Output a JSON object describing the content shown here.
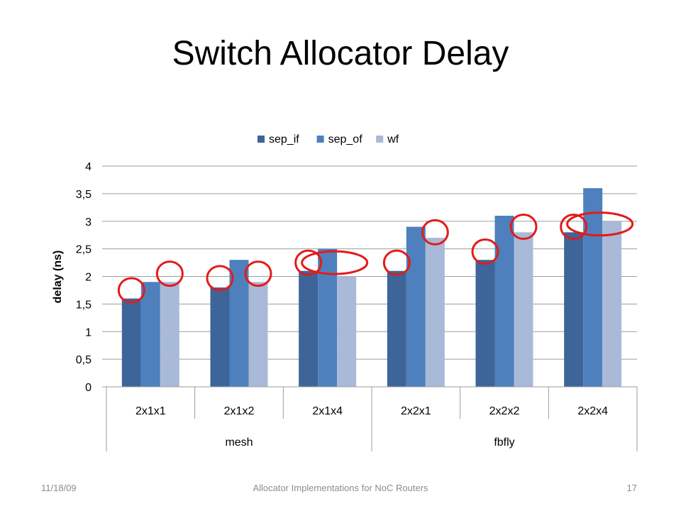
{
  "slide": {
    "title": "Switch Allocator Delay",
    "footer_date": "11/18/09",
    "footer_center": "Allocator Implementations for NoC Routers",
    "page_number": "17"
  },
  "colors": {
    "sep_if": "#3d6599",
    "sep_of": "#4e80bd",
    "wf": "#a9bad8",
    "gridline": "#9d9d9d",
    "annotation_circle": "#e31b1b"
  },
  "chart_data": {
    "type": "bar",
    "title": "",
    "ylabel": "delay (ns)",
    "xlabel": "",
    "ylim": [
      0,
      4
    ],
    "yticks": [
      "0",
      "0,5",
      "1",
      "1,5",
      "2",
      "2,5",
      "3",
      "3,5",
      "4"
    ],
    "grid": true,
    "legend_position": "top",
    "categories": [
      "2x1x1",
      "2x1x2",
      "2x1x4",
      "2x2x1",
      "2x2x2",
      "2x2x4"
    ],
    "groups": [
      {
        "label": "mesh",
        "categories": [
          "2x1x1",
          "2x1x2",
          "2x1x4"
        ]
      },
      {
        "label": "fbfly",
        "categories": [
          "2x2x1",
          "2x2x2",
          "2x2x4"
        ]
      }
    ],
    "series": [
      {
        "name": "sep_if",
        "values": [
          1.6,
          1.8,
          2.1,
          2.1,
          2.3,
          2.8
        ]
      },
      {
        "name": "sep_of",
        "values": [
          1.9,
          2.3,
          2.5,
          2.9,
          3.1,
          3.6
        ]
      },
      {
        "name": "wf",
        "values": [
          1.9,
          1.9,
          2.0,
          2.7,
          2.8,
          3.0
        ]
      }
    ],
    "annotations": [
      {
        "shape": "circle",
        "category": "2x1x1",
        "series": "sep_if",
        "value": 1.75
      },
      {
        "shape": "circle",
        "category": "2x1x1",
        "series": "wf",
        "value": 2.05
      },
      {
        "shape": "circle",
        "category": "2x1x2",
        "series": "sep_if",
        "value": 1.97
      },
      {
        "shape": "circle",
        "category": "2x1x2",
        "series": "wf",
        "value": 2.05
      },
      {
        "shape": "circle",
        "category": "2x1x4",
        "series": "sep_if",
        "value": 2.25
      },
      {
        "shape": "ellipse",
        "category": "2x1x4",
        "series": "sep_of",
        "value": 2.25
      },
      {
        "shape": "circle",
        "category": "2x2x1",
        "series": "sep_if",
        "value": 2.25
      },
      {
        "shape": "circle",
        "category": "2x2x1",
        "series": "wf",
        "value": 2.8
      },
      {
        "shape": "circle",
        "category": "2x2x2",
        "series": "sep_if",
        "value": 2.45
      },
      {
        "shape": "circle",
        "category": "2x2x2",
        "series": "wf",
        "value": 2.9
      },
      {
        "shape": "circle",
        "category": "2x2x4",
        "series": "sep_if",
        "value": 2.9
      },
      {
        "shape": "ellipse",
        "category": "2x2x4",
        "series": "sep_of",
        "value": 2.95
      }
    ]
  }
}
